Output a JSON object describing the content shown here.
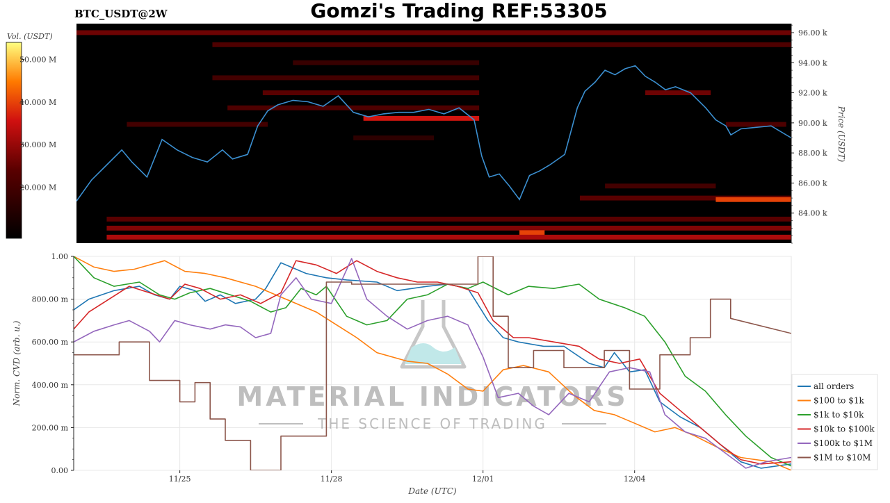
{
  "header": {
    "symbol": "BTC_USDT@2W",
    "title": "Gomzi's Trading REF:53305"
  },
  "watermark": {
    "brand": "MATERIAL INDICATORS",
    "tagline": "THE SCIENCE OF TRADING"
  },
  "colors": {
    "price_line": "#3b8fd0",
    "heatmap_bg": "#000000",
    "all_orders": "#1f77b4",
    "s100_1k": "#ff7f0e",
    "s1k_10k": "#2ca02c",
    "s10k_100k": "#d62728",
    "s100k_1m": "#9467bd",
    "s1m_10m": "#8c564b"
  },
  "chart_data": [
    {
      "type": "heatmap",
      "title": "Gomzi's Trading REF:53305",
      "subtitle": "BTC_USDT@2W",
      "colorbar_label": "Vol. (USDT)",
      "colorbar_ticks": [
        "20.000 M",
        "30.000 M",
        "40.000 M",
        "50.000 M"
      ],
      "colorbar_tick_values": [
        20,
        30,
        40,
        50
      ],
      "colorbar_range": [
        8,
        54
      ],
      "ylabel": "Price (USDT)",
      "y_ticks": [
        "84.00 k",
        "86.00 k",
        "88.00 k",
        "90.00 k",
        "92.00 k",
        "94.00 k",
        "96.00 k"
      ],
      "y_tick_values": [
        84,
        86,
        88,
        90,
        92,
        94,
        96
      ],
      "ylim": [
        82,
        96.6
      ],
      "xlim": [
        0,
        14.2
      ],
      "liquidity_bands": [
        {
          "price": 96.0,
          "x0": 0,
          "x1": 14.2,
          "level": 26
        },
        {
          "price": 95.2,
          "x0": 2.7,
          "x1": 14.2,
          "level": 22
        },
        {
          "price": 94.0,
          "x0": 4.3,
          "x1": 8.0,
          "level": 18
        },
        {
          "price": 93.0,
          "x0": 2.7,
          "x1": 8.0,
          "level": 20
        },
        {
          "price": 92.0,
          "x0": 3.7,
          "x1": 8.0,
          "level": 24
        },
        {
          "price": 92.0,
          "x0": 11.3,
          "x1": 12.6,
          "level": 26
        },
        {
          "price": 91.0,
          "x0": 3.0,
          "x1": 8.0,
          "level": 22
        },
        {
          "price": 90.3,
          "x0": 5.7,
          "x1": 8.0,
          "level": 36
        },
        {
          "price": 89.9,
          "x0": 1.0,
          "x1": 3.8,
          "level": 20
        },
        {
          "price": 89.9,
          "x0": 12.9,
          "x1": 14.1,
          "level": 22
        },
        {
          "price": 89.0,
          "x0": 5.5,
          "x1": 7.1,
          "level": 16
        },
        {
          "price": 85.8,
          "x0": 10.5,
          "x1": 12.7,
          "level": 20
        },
        {
          "price": 85.0,
          "x0": 10.0,
          "x1": 14.2,
          "level": 24
        },
        {
          "price": 84.9,
          "x0": 12.7,
          "x1": 14.2,
          "level": 40
        },
        {
          "price": 83.6,
          "x0": 0.6,
          "x1": 14.2,
          "level": 24
        },
        {
          "price": 83.0,
          "x0": 0.6,
          "x1": 14.2,
          "level": 28
        },
        {
          "price": 82.7,
          "x0": 8.8,
          "x1": 9.3,
          "level": 40
        },
        {
          "price": 82.4,
          "x0": 0.6,
          "x1": 14.2,
          "level": 32
        }
      ],
      "price_series": {
        "name": "",
        "x": [
          0,
          0.3,
          0.6,
          0.9,
          1.1,
          1.4,
          1.7,
          2.0,
          2.3,
          2.6,
          2.9,
          3.1,
          3.4,
          3.6,
          3.8,
          4.0,
          4.3,
          4.6,
          4.9,
          5.2,
          5.5,
          5.8,
          6.1,
          6.4,
          6.7,
          7.0,
          7.3,
          7.6,
          7.9,
          8.05,
          8.2,
          8.4,
          8.6,
          8.8,
          9.0,
          9.2,
          9.4,
          9.7,
          9.95,
          10.1,
          10.3,
          10.5,
          10.7,
          10.9,
          11.1,
          11.3,
          11.5,
          11.7,
          11.9,
          12.2,
          12.5,
          12.7,
          12.9,
          13.0,
          13.2,
          13.5,
          13.8,
          14.2
        ],
        "y": [
          84.8,
          86.2,
          87.2,
          88.2,
          87.4,
          86.4,
          88.9,
          88.2,
          87.7,
          87.4,
          88.2,
          87.6,
          87.9,
          89.8,
          90.8,
          91.2,
          91.5,
          91.4,
          91.1,
          91.8,
          90.7,
          90.4,
          90.6,
          90.7,
          90.7,
          90.9,
          90.6,
          91.0,
          90.2,
          87.8,
          86.4,
          86.6,
          85.8,
          84.9,
          86.5,
          86.8,
          87.2,
          87.9,
          91.0,
          92.1,
          92.7,
          93.5,
          93.2,
          93.6,
          93.8,
          93.1,
          92.7,
          92.2,
          92.4,
          92.0,
          91.0,
          90.2,
          89.8,
          89.2,
          89.6,
          89.7,
          89.8,
          89.0
        ]
      }
    },
    {
      "type": "line",
      "xlabel": "Date (UTC)",
      "ylabel": "Norm. CVD (arb. u.)",
      "x_ticks": [
        "11/25",
        "11/28",
        "12/01",
        "12/04"
      ],
      "x_tick_values": [
        2.1,
        5.1,
        8.1,
        11.1
      ],
      "xlim": [
        0,
        14.2
      ],
      "y_ticks": [
        "0.00",
        "200.00 m",
        "400.00 m",
        "600.00 m",
        "800.00 m",
        "1.00"
      ],
      "y_tick_values": [
        0,
        0.2,
        0.4,
        0.6,
        0.8,
        1.0
      ],
      "ylim": [
        0,
        1
      ],
      "grid": true,
      "legend_position": "bottom-right",
      "series": [
        {
          "name": "all orders",
          "color_key": "all_orders",
          "x": [
            0,
            0.3,
            0.8,
            1.3,
            1.6,
            1.9,
            2.1,
            2.4,
            2.6,
            2.9,
            3.2,
            3.6,
            3.8,
            4.1,
            4.3,
            4.6,
            5.0,
            5.4,
            6.0,
            6.4,
            7.0,
            7.4,
            7.8,
            8.2,
            8.5,
            8.8,
            9.3,
            9.7,
            10.2,
            10.5,
            10.7,
            11.0,
            11.3,
            11.6,
            12.0,
            12.4,
            12.8,
            13.2,
            13.6,
            14.2
          ],
          "y": [
            0.75,
            0.8,
            0.84,
            0.86,
            0.82,
            0.8,
            0.86,
            0.84,
            0.79,
            0.82,
            0.78,
            0.8,
            0.85,
            0.97,
            0.95,
            0.92,
            0.9,
            0.89,
            0.88,
            0.84,
            0.86,
            0.87,
            0.85,
            0.7,
            0.62,
            0.6,
            0.58,
            0.58,
            0.5,
            0.48,
            0.55,
            0.46,
            0.47,
            0.32,
            0.25,
            0.2,
            0.12,
            0.04,
            0.01,
            0.03
          ]
        },
        {
          "name": "$100 to $1k",
          "color_key": "s100_1k",
          "x": [
            0,
            0.4,
            0.8,
            1.2,
            1.8,
            2.2,
            2.6,
            3.0,
            3.6,
            4.2,
            4.8,
            5.2,
            5.6,
            6.0,
            6.6,
            7.0,
            7.4,
            7.8,
            8.1,
            8.5,
            8.9,
            9.4,
            9.9,
            10.3,
            10.7,
            11.1,
            11.5,
            11.9,
            12.3,
            12.8,
            13.2,
            13.8,
            14.2
          ],
          "y": [
            1.0,
            0.95,
            0.93,
            0.94,
            0.98,
            0.93,
            0.92,
            0.9,
            0.86,
            0.8,
            0.74,
            0.68,
            0.62,
            0.55,
            0.51,
            0.5,
            0.45,
            0.38,
            0.37,
            0.47,
            0.49,
            0.46,
            0.35,
            0.28,
            0.26,
            0.22,
            0.18,
            0.2,
            0.16,
            0.1,
            0.06,
            0.04,
            0.0
          ]
        },
        {
          "name": "$1k to $10k",
          "color_key": "s1k_10k",
          "x": [
            0,
            0.4,
            0.8,
            1.3,
            1.7,
            2.0,
            2.3,
            2.7,
            3.1,
            3.5,
            3.9,
            4.2,
            4.5,
            4.8,
            5.0,
            5.4,
            5.8,
            6.2,
            6.6,
            7.0,
            7.4,
            7.8,
            8.1,
            8.6,
            9.0,
            9.5,
            10.0,
            10.4,
            10.9,
            11.3,
            11.7,
            12.1,
            12.5,
            12.9,
            13.3,
            13.8,
            14.2
          ],
          "y": [
            1.0,
            0.9,
            0.86,
            0.88,
            0.82,
            0.8,
            0.83,
            0.85,
            0.82,
            0.79,
            0.74,
            0.76,
            0.85,
            0.82,
            0.86,
            0.72,
            0.68,
            0.7,
            0.8,
            0.82,
            0.87,
            0.85,
            0.88,
            0.82,
            0.86,
            0.85,
            0.87,
            0.8,
            0.76,
            0.72,
            0.6,
            0.44,
            0.37,
            0.26,
            0.16,
            0.06,
            0.02
          ]
        },
        {
          "name": "$10k to $100k",
          "color_key": "s10k_100k",
          "x": [
            0,
            0.3,
            0.7,
            1.1,
            1.5,
            1.9,
            2.2,
            2.5,
            2.9,
            3.3,
            3.7,
            4.1,
            4.4,
            4.8,
            5.2,
            5.6,
            6.0,
            6.4,
            6.8,
            7.2,
            7.6,
            8.0,
            8.3,
            8.7,
            9.0,
            9.5,
            10.0,
            10.4,
            10.8,
            11.2,
            11.6,
            12.0,
            12.4,
            12.8,
            13.2,
            13.6,
            14.2
          ],
          "y": [
            0.66,
            0.74,
            0.8,
            0.86,
            0.83,
            0.8,
            0.87,
            0.85,
            0.8,
            0.82,
            0.78,
            0.83,
            0.98,
            0.96,
            0.92,
            0.98,
            0.93,
            0.9,
            0.88,
            0.88,
            0.86,
            0.83,
            0.7,
            0.62,
            0.62,
            0.6,
            0.58,
            0.52,
            0.5,
            0.52,
            0.36,
            0.28,
            0.2,
            0.12,
            0.05,
            0.03,
            0.04
          ]
        },
        {
          "name": "$100k to $1M",
          "color_key": "s100k_1m",
          "x": [
            0,
            0.4,
            0.8,
            1.1,
            1.5,
            1.7,
            2.0,
            2.3,
            2.7,
            3.0,
            3.3,
            3.6,
            3.9,
            4.1,
            4.4,
            4.7,
            5.1,
            5.5,
            5.8,
            6.2,
            6.6,
            7.0,
            7.4,
            7.8,
            8.1,
            8.4,
            8.8,
            9.1,
            9.4,
            9.8,
            10.2,
            10.6,
            11.0,
            11.4,
            11.7,
            12.1,
            12.5,
            12.9,
            13.3,
            13.7,
            14.2
          ],
          "y": [
            0.6,
            0.65,
            0.68,
            0.7,
            0.65,
            0.6,
            0.7,
            0.68,
            0.66,
            0.68,
            0.67,
            0.62,
            0.64,
            0.82,
            0.9,
            0.8,
            0.78,
            0.99,
            0.8,
            0.72,
            0.66,
            0.7,
            0.72,
            0.68,
            0.53,
            0.34,
            0.36,
            0.3,
            0.26,
            0.36,
            0.32,
            0.46,
            0.48,
            0.46,
            0.26,
            0.18,
            0.15,
            0.08,
            0.01,
            0.04,
            0.06
          ]
        },
        {
          "name": "$1M to $10M",
          "color_key": "s1m_10m",
          "x": [
            0,
            0.9,
            0.9,
            1.5,
            1.5,
            1.5,
            2.1,
            2.1,
            2.4,
            2.4,
            2.7,
            2.7,
            3.0,
            3.0,
            3.5,
            3.5,
            4.1,
            4.1,
            5.0,
            5.0,
            5.5,
            5.5,
            8.0,
            8.0,
            8.3,
            8.3,
            8.6,
            8.6,
            9.1,
            9.1,
            9.7,
            9.7,
            10.5,
            10.5,
            11.0,
            11.0,
            11.6,
            11.6,
            12.2,
            12.2,
            12.6,
            12.6,
            13.0,
            13.0,
            14.2
          ],
          "y": [
            0.54,
            0.54,
            0.6,
            0.6,
            0.6,
            0.42,
            0.42,
            0.32,
            0.32,
            0.41,
            0.41,
            0.24,
            0.24,
            0.14,
            0.14,
            0.0,
            0.0,
            0.16,
            0.16,
            0.88,
            0.88,
            0.87,
            0.87,
            1.0,
            1.0,
            0.72,
            0.72,
            0.48,
            0.48,
            0.56,
            0.56,
            0.48,
            0.48,
            0.56,
            0.56,
            0.38,
            0.38,
            0.54,
            0.54,
            0.62,
            0.62,
            0.8,
            0.8,
            0.71,
            0.64
          ]
        }
      ]
    }
  ]
}
